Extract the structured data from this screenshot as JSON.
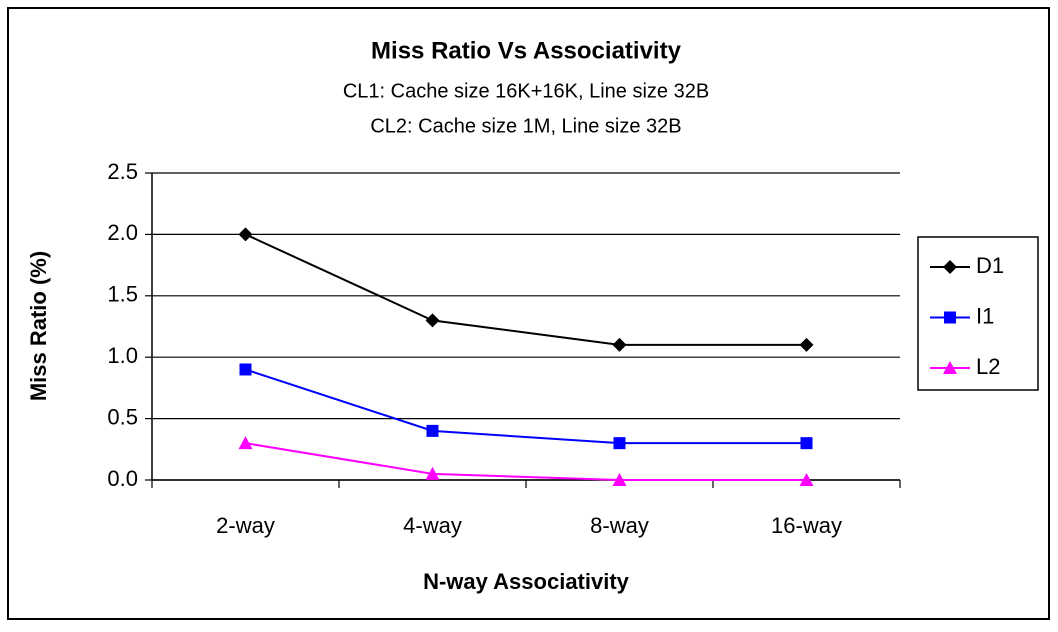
{
  "chart_data": {
    "type": "line",
    "title": "Miss Ratio Vs Associativity",
    "subtitle": [
      "CL1: Cache size 16K+16K, Line size 32B",
      "CL2: Cache size 1M, Line size 32B"
    ],
    "x_label": "N-way Associativity",
    "y_label": "Miss Ratio (%)",
    "categories": [
      "2-way",
      "4-way",
      "8-way",
      "16-way"
    ],
    "series": [
      {
        "name": "D1",
        "color": "#000000",
        "marker": "diamond",
        "values": [
          2.0,
          1.3,
          1.1,
          1.1
        ]
      },
      {
        "name": "I1",
        "color": "#0000ff",
        "marker": "square",
        "values": [
          0.9,
          0.4,
          0.3,
          0.3
        ]
      },
      {
        "name": "L2",
        "color": "#ff00ff",
        "marker": "triangle",
        "values": [
          0.3,
          0.05,
          0,
          0
        ]
      }
    ],
    "ylim": [
      0,
      2.5
    ],
    "yticks": [
      {
        "value": 0,
        "label": "0.0"
      },
      0.5,
      {
        "value": 1,
        "label": "1.0"
      },
      1.5,
      {
        "value": 2,
        "label": "2.0"
      },
      2.5
    ],
    "grid": true,
    "legend": "right"
  }
}
